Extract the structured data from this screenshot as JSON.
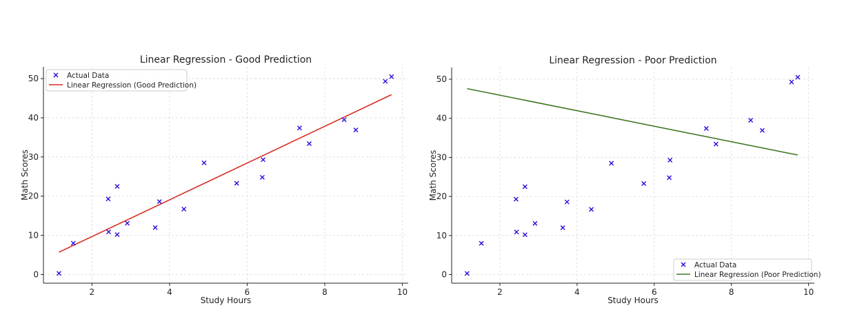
{
  "chart_data": [
    {
      "type": "scatter",
      "title": "Linear Regression - Good Prediction",
      "xlabel": "Study Hours",
      "ylabel": "Math Scores",
      "xlim": [
        0.75,
        10.15
      ],
      "ylim": [
        -2.2,
        53
      ],
      "xticks": [
        2,
        4,
        6,
        8,
        10
      ],
      "yticks": [
        0,
        10,
        20,
        30,
        40,
        50
      ],
      "grid": true,
      "legend_position": "top-left",
      "legend": [
        "Actual Data",
        "Linear Regression (Good Prediction)"
      ],
      "points": [
        {
          "x": 1.15,
          "y": 0.3
        },
        {
          "x": 1.52,
          "y": 8.0
        },
        {
          "x": 2.42,
          "y": 19.3
        },
        {
          "x": 2.43,
          "y": 10.9
        },
        {
          "x": 2.65,
          "y": 22.5
        },
        {
          "x": 2.65,
          "y": 10.2
        },
        {
          "x": 2.91,
          "y": 13.1
        },
        {
          "x": 3.63,
          "y": 12.0
        },
        {
          "x": 3.74,
          "y": 18.6
        },
        {
          "x": 4.37,
          "y": 16.7
        },
        {
          "x": 4.89,
          "y": 28.5
        },
        {
          "x": 5.73,
          "y": 23.3
        },
        {
          "x": 6.39,
          "y": 24.8
        },
        {
          "x": 6.41,
          "y": 29.3
        },
        {
          "x": 7.35,
          "y": 37.4
        },
        {
          "x": 7.6,
          "y": 33.4
        },
        {
          "x": 8.5,
          "y": 39.5
        },
        {
          "x": 8.8,
          "y": 36.9
        },
        {
          "x": 9.56,
          "y": 49.3
        },
        {
          "x": 9.72,
          "y": 50.5
        }
      ],
      "line": [
        {
          "x": 1.15,
          "y": 5.7
        },
        {
          "x": 9.72,
          "y": 45.9
        }
      ],
      "colors": {
        "points": "#2a0be0",
        "line": "#d62c20"
      }
    },
    {
      "type": "scatter",
      "title": "Linear Regression - Poor Prediction",
      "xlabel": "Study Hours",
      "ylabel": "Math Scores",
      "xlim": [
        0.75,
        10.15
      ],
      "ylim": [
        -2.2,
        53
      ],
      "xticks": [
        2,
        4,
        6,
        8,
        10
      ],
      "yticks": [
        0,
        10,
        20,
        30,
        40,
        50
      ],
      "grid": true,
      "legend_position": "bottom-right",
      "legend": [
        "Actual Data",
        "Linear Regression (Poor Prediction)"
      ],
      "points": [
        {
          "x": 1.15,
          "y": 0.3
        },
        {
          "x": 1.52,
          "y": 8.0
        },
        {
          "x": 2.42,
          "y": 19.3
        },
        {
          "x": 2.43,
          "y": 10.9
        },
        {
          "x": 2.65,
          "y": 22.5
        },
        {
          "x": 2.65,
          "y": 10.2
        },
        {
          "x": 2.91,
          "y": 13.1
        },
        {
          "x": 3.63,
          "y": 12.0
        },
        {
          "x": 3.74,
          "y": 18.6
        },
        {
          "x": 4.37,
          "y": 16.7
        },
        {
          "x": 4.89,
          "y": 28.5
        },
        {
          "x": 5.73,
          "y": 23.3
        },
        {
          "x": 6.39,
          "y": 24.8
        },
        {
          "x": 6.41,
          "y": 29.3
        },
        {
          "x": 7.35,
          "y": 37.4
        },
        {
          "x": 7.6,
          "y": 33.4
        },
        {
          "x": 8.5,
          "y": 39.5
        },
        {
          "x": 8.8,
          "y": 36.9
        },
        {
          "x": 9.56,
          "y": 49.3
        },
        {
          "x": 9.72,
          "y": 50.5
        }
      ],
      "line": [
        {
          "x": 1.15,
          "y": 47.6
        },
        {
          "x": 9.72,
          "y": 30.6
        }
      ],
      "colors": {
        "points": "#2a0be0",
        "line": "#3e7a22"
      }
    }
  ]
}
